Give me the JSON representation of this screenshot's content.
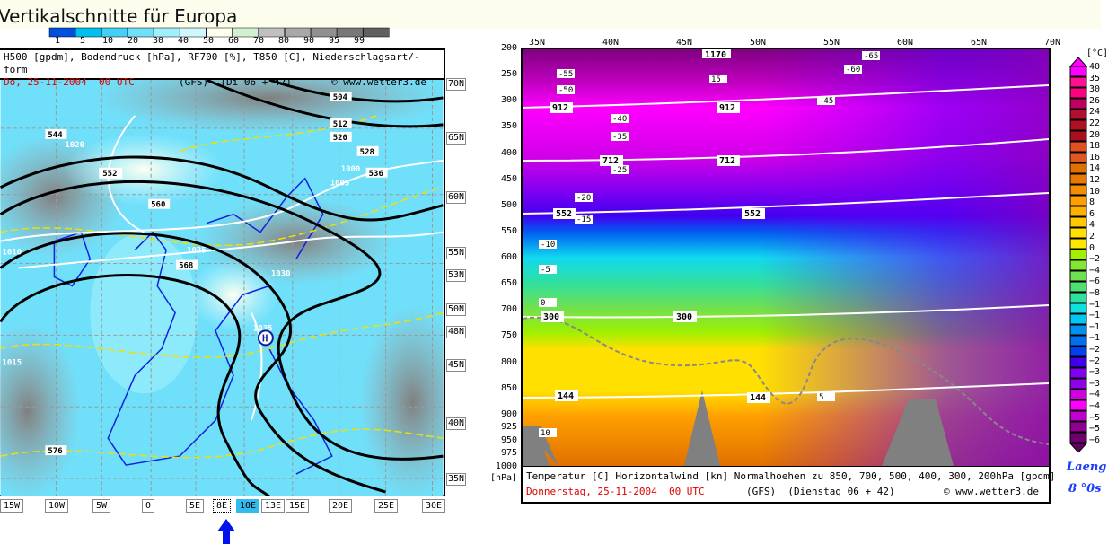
{
  "title": "Vertikalschnitte für Europa",
  "humidity_scale": {
    "labels": [
      "1",
      "5",
      "10",
      "20",
      "30",
      "40",
      "50",
      "60",
      "70",
      "80",
      "90",
      "95",
      "99"
    ],
    "colors": [
      "#0050e0",
      "#00c0f0",
      "#40d0f8",
      "#70e0fa",
      "#a0f0fc",
      "#d0f8fc",
      "#fffff0",
      "#d0f0d0",
      "#c0c0c0",
      "#a8a8a8",
      "#909090",
      "#787878",
      "#606060"
    ]
  },
  "map": {
    "header_line1": "H500 [gpdm], Bodendruck [hPa], RF700 [%], T850 [C], Niederschlagsart/-form",
    "date": "Do, 25-11-2004  00 UTC",
    "model": "(GFS)  (Di 06 + 42)",
    "copyright": "© www.wetter3.de",
    "lat_labels": [
      "70N",
      "65N",
      "60N",
      "55N",
      "53N",
      "50N",
      "48N",
      "45N",
      "40N",
      "35N"
    ],
    "lon_labels": [
      "15W",
      "10W",
      "5W",
      "0",
      "5E",
      "8E",
      "10E",
      "13E",
      "15E",
      "20E",
      "25E",
      "30E"
    ],
    "selected_lon": "10E",
    "current_lon": "8E",
    "contour_labels": [
      "552",
      "560",
      "568",
      "576",
      "544",
      "504",
      "512",
      "520",
      "528",
      "536",
      "1020",
      "1025",
      "1030",
      "1035",
      "1015",
      "1010",
      "1005",
      "1000",
      "H"
    ]
  },
  "section": {
    "lat_labels": [
      "35N",
      "40N",
      "45N",
      "50N",
      "55N",
      "60N",
      "65N",
      "70N"
    ],
    "pressure_labels": [
      "200",
      "250",
      "300",
      "350",
      "400",
      "450",
      "500",
      "550",
      "600",
      "650",
      "700",
      "750",
      "800",
      "850",
      "900",
      "925",
      "950",
      "975",
      "1000"
    ],
    "pressure_unit": "[hPa]",
    "height_labels": [
      "1170",
      "912",
      "712",
      "552",
      "300",
      "144"
    ],
    "temp_labels": [
      "-55",
      "-50",
      "-45",
      "-40",
      "-35",
      "-25",
      "-20",
      "-15",
      "-10",
      "-5",
      "0",
      "5",
      "10",
      "15",
      "-60",
      "-65"
    ],
    "footer_line1": "Temperatur [C] Horizontalwind [kn] Normalhoehen zu 850, 700, 500, 400, 300, 200hPa [gpdm]",
    "date": "Donnerstag, 25-11-2004  00 UTC",
    "model": "(GFS)  (Dienstag 06 + 42)",
    "copyright": "© www.wetter3.de",
    "temp_scale_unit": "[°C]",
    "temp_scale_labels": [
      "40",
      "35",
      "30",
      "26",
      "24",
      "22",
      "20",
      "18",
      "16",
      "14",
      "12",
      "10",
      "8",
      "6",
      "4",
      "2",
      "0",
      "−2",
      "−4",
      "−6",
      "−8",
      "−1",
      "−1",
      "−1",
      "−1",
      "−2",
      "−2",
      "−3",
      "−3",
      "−4",
      "−4",
      "−5",
      "−5",
      "−6"
    ],
    "temp_scale_colors": [
      "#ff00ff",
      "#ff1090",
      "#ff0080",
      "#c00060",
      "#b01030",
      "#b01020",
      "#a81020",
      "#e05020",
      "#e05820",
      "#e07000",
      "#e87800",
      "#f09000",
      "#ffa000",
      "#ffb000",
      "#ffc800",
      "#ffe000",
      "#ffe800",
      "#a0f000",
      "#80e830",
      "#70e050",
      "#50e070",
      "#30e0a0",
      "#10e0e0",
      "#00c8f0",
      "#0090f0",
      "#0070f0",
      "#0040f0",
      "#4000f0",
      "#8000f0",
      "#9000e8",
      "#d000e0",
      "#ff00ff",
      "#c000d0",
      "#900090",
      "#700070"
    ],
    "position_label": "Laeng",
    "position_value": "8 °0s"
  }
}
